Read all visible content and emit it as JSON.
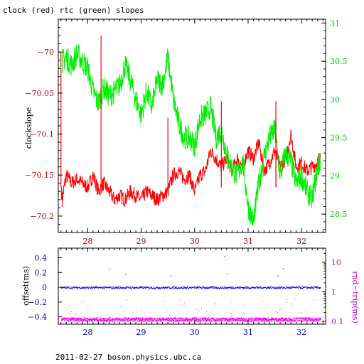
{
  "header": {
    "title": "clock (red) rtc (green) slopes"
  },
  "footer": {
    "caption": "2011-02-27  boson.physics.ubc.ca"
  },
  "colors": {
    "clock": "#ff0000",
    "rtc": "#00ee00",
    "offset": "#0000ff",
    "roundtrip": "#ff00ff",
    "left_axis": "#cc0000",
    "right_axis_top": "#00cc00",
    "bottom_axis_top": "#cc0000",
    "bottom_axis_low": "#0000cc",
    "right_axis_low": "#cc00cc"
  },
  "chart_data": [
    {
      "type": "line",
      "title": "clock (red) rtc (green) slopes",
      "ylabel": "clockslope",
      "xlim": [
        27.45,
        32.45
      ],
      "ylim": [
        -70.22,
        -69.96
      ],
      "y2lim": [
        28.26,
        31.05
      ],
      "x_ticks": [
        28,
        29,
        30,
        31,
        32
      ],
      "y_ticks": [
        -70,
        -70.05,
        -70.1,
        -70.15,
        -70.2
      ],
      "y2_ticks": [
        28.5,
        29,
        29.5,
        30,
        30.5,
        31
      ],
      "x_tick_labels": [
        "28",
        "29",
        "30",
        "31",
        "32"
      ],
      "y_tick_labels": [
        "−70",
        "−70.05",
        "−70.1",
        "−70.15",
        "−70.2"
      ],
      "y2_tick_labels": [
        "28.5",
        "29",
        "29.5",
        "30",
        "30.5",
        "31"
      ],
      "series": [
        {
          "color": "#ff0000",
          "axis": "left",
          "x": [
            27.52,
            27.6,
            27.7,
            27.8,
            27.9,
            28.0,
            28.1,
            28.2,
            28.3,
            28.4,
            28.5,
            28.6,
            28.7,
            28.8,
            28.9,
            29.0,
            29.1,
            29.2,
            29.3,
            29.4,
            29.5,
            29.6,
            29.7,
            29.8,
            29.9,
            30.0,
            30.1,
            30.2,
            30.3,
            30.4,
            30.5,
            30.6,
            30.7,
            30.8,
            30.9,
            31.0,
            31.1,
            31.2,
            31.3,
            31.4,
            31.5,
            31.6,
            31.7,
            31.8,
            31.9,
            32.0,
            32.1,
            32.2,
            32.3,
            32.35
          ],
          "y": [
            -70.18,
            -70.15,
            -70.16,
            -70.155,
            -70.16,
            -70.165,
            -70.15,
            -70.17,
            -70.16,
            -70.17,
            -70.18,
            -70.175,
            -70.18,
            -70.17,
            -70.175,
            -70.18,
            -70.17,
            -70.175,
            -70.18,
            -70.175,
            -70.17,
            -70.15,
            -70.145,
            -70.155,
            -70.15,
            -70.17,
            -70.15,
            -70.145,
            -70.12,
            -70.13,
            -70.14,
            -70.13,
            -70.145,
            -70.13,
            -70.14,
            -70.12,
            -70.13,
            -70.11,
            -70.145,
            -70.135,
            -70.12,
            -70.14,
            -70.13,
            -70.1,
            -70.14,
            -70.135,
            -70.145,
            -70.14,
            -70.135,
            -70.125
          ]
        },
        {
          "color": "#00ee00",
          "axis": "right",
          "x": [
            27.52,
            27.6,
            27.7,
            27.8,
            27.9,
            28.0,
            28.1,
            28.2,
            28.3,
            28.4,
            28.5,
            28.6,
            28.7,
            28.8,
            28.9,
            29.0,
            29.1,
            29.2,
            29.3,
            29.4,
            29.5,
            29.6,
            29.7,
            29.8,
            29.9,
            30.0,
            30.1,
            30.2,
            30.3,
            30.4,
            30.5,
            30.6,
            30.7,
            30.8,
            30.9,
            31.0,
            31.1,
            31.2,
            31.3,
            31.4,
            31.5,
            31.6,
            31.7,
            31.8,
            31.9,
            32.0,
            32.1,
            32.2,
            32.3,
            32.35
          ],
          "y": [
            30.5,
            30.55,
            30.45,
            30.6,
            30.5,
            30.4,
            30.1,
            29.95,
            30.15,
            30.05,
            30.1,
            30.2,
            30.45,
            30.25,
            30.0,
            29.8,
            30.1,
            29.9,
            30.25,
            30.2,
            30.55,
            30.0,
            29.7,
            29.5,
            29.5,
            29.4,
            29.75,
            29.8,
            29.9,
            29.5,
            29.6,
            29.3,
            29.1,
            29.0,
            29.2,
            28.6,
            28.4,
            28.9,
            29.25,
            29.5,
            29.6,
            29.0,
            29.3,
            29.2,
            28.9,
            29.0,
            28.8,
            28.7,
            29.1,
            29.2
          ]
        }
      ],
      "spikes": [
        {
          "x": 27.5,
          "y": -70.0
        },
        {
          "x": 27.51,
          "y": -70.18
        },
        {
          "x": 28.25,
          "y": -69.98
        },
        {
          "x": 28.28,
          "y": -70.16
        },
        {
          "x": 29.5,
          "y": -70.08
        },
        {
          "x": 30.5,
          "y": -70.06
        },
        {
          "x": 31.52,
          "y": -70.06
        },
        {
          "x": 31.52,
          "y": -70.12
        }
      ]
    },
    {
      "type": "scatter",
      "ylabel": "offset(ms)",
      "y2label": "rnd−trip(ms)",
      "xlim": [
        27.45,
        32.45
      ],
      "ylim": [
        -0.5,
        0.53
      ],
      "y2_scale": "log",
      "y2lim": [
        0.08,
        30
      ],
      "x_ticks": [
        28,
        29,
        30,
        31,
        32
      ],
      "y_ticks": [
        0.4,
        0.2,
        0,
        -0.2,
        -0.4
      ],
      "y2_ticks": [
        10,
        1,
        0.1
      ],
      "x_tick_labels": [
        "28",
        "29",
        "30",
        "31",
        "32"
      ],
      "y_tick_labels": [
        "0.4",
        "0.2",
        "0",
        "−0.2",
        "−0.4"
      ],
      "y2_tick_labels": [
        "10",
        "1",
        "0.1"
      ],
      "series": [
        {
          "color": "#0000ff",
          "axis": "left",
          "baseline": 0.0,
          "x_range": [
            27.5,
            32.35
          ]
        },
        {
          "color": "#ff00ff",
          "axis": "right",
          "baseline": 0.12,
          "x_range": [
            27.5,
            32.35
          ]
        }
      ],
      "outliers": [
        {
          "x": 28.4,
          "y": 0.25
        },
        {
          "x": 28.7,
          "y": 0.18
        },
        {
          "x": 29.55,
          "y": 0.16
        },
        {
          "x": 30.55,
          "y": 0.42
        },
        {
          "x": 30.6,
          "y": 0.19
        },
        {
          "x": 31.55,
          "y": 0.16
        },
        {
          "x": 31.65,
          "y": 0.26
        }
      ]
    }
  ]
}
